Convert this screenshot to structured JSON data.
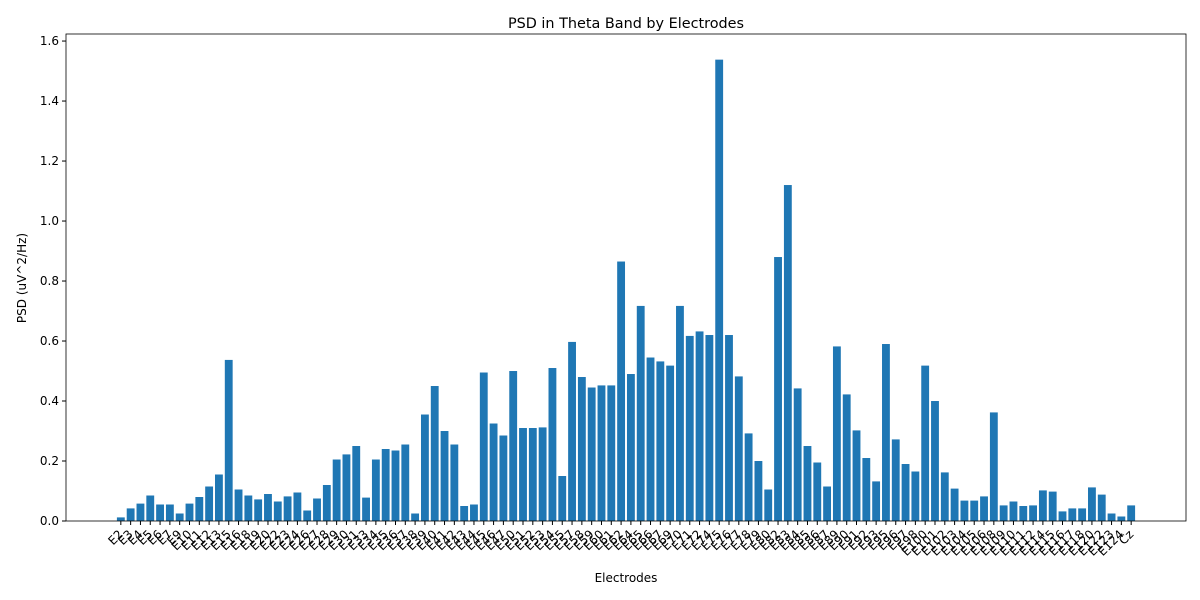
{
  "chart_data": {
    "type": "bar",
    "title": "PSD in Theta Band by Electrodes",
    "x_label": "Electrodes",
    "y_label": "PSD (uV^2/Hz)",
    "categories": [
      "E2",
      "E3",
      "E4",
      "E5",
      "E6",
      "E7",
      "E9",
      "E10",
      "E11",
      "E12",
      "E13",
      "E15",
      "E16",
      "E18",
      "E19",
      "E20",
      "E22",
      "E23",
      "E24",
      "E26",
      "E27",
      "E28",
      "E29",
      "E30",
      "E31",
      "E33",
      "E34",
      "E35",
      "E36",
      "E37",
      "E38",
      "E39",
      "E40",
      "E41",
      "E42",
      "E43",
      "E44",
      "E45",
      "E46",
      "E47",
      "E50",
      "E51",
      "E52",
      "E53",
      "E54",
      "E55",
      "E57",
      "E58",
      "E59",
      "E60",
      "E61",
      "E62",
      "E64",
      "E65",
      "E66",
      "E67",
      "E69",
      "E70",
      "E71",
      "E72",
      "E74",
      "E75",
      "E76",
      "E77",
      "E78",
      "E79",
      "E80",
      "E82",
      "E83",
      "E84",
      "E85",
      "E86",
      "E87",
      "E89",
      "E90",
      "E91",
      "E92",
      "E93",
      "E95",
      "E96",
      "E97",
      "E98",
      "E100",
      "E101",
      "E102",
      "E103",
      "E104",
      "E105",
      "E106",
      "E108",
      "E109",
      "E110",
      "E111",
      "E112",
      "E114",
      "E115",
      "E116",
      "E117",
      "E118",
      "E120",
      "E122",
      "E123",
      "E124",
      "Cz"
    ],
    "values": [
      0.012,
      0.042,
      0.058,
      0.085,
      0.055,
      0.055,
      0.025,
      0.058,
      0.08,
      0.115,
      0.155,
      0.537,
      0.105,
      0.085,
      0.072,
      0.09,
      0.065,
      0.082,
      0.095,
      0.035,
      0.075,
      0.12,
      0.205,
      0.222,
      0.25,
      0.078,
      0.205,
      0.24,
      0.235,
      0.255,
      0.025,
      0.355,
      0.45,
      0.3,
      0.255,
      0.05,
      0.055,
      0.495,
      0.325,
      0.285,
      0.5,
      0.31,
      0.31,
      0.312,
      0.51,
      0.15,
      0.597,
      0.48,
      0.445,
      0.452,
      0.452,
      0.865,
      0.49,
      0.717,
      0.545,
      0.532,
      0.518,
      0.717,
      0.617,
      0.632,
      0.62,
      1.538,
      0.62,
      0.482,
      0.292,
      0.2,
      0.105,
      0.88,
      1.12,
      0.442,
      0.25,
      0.195,
      0.115,
      0.582,
      0.422,
      0.302,
      0.21,
      0.132,
      0.59,
      0.272,
      0.19,
      0.165,
      0.518,
      0.4,
      0.162,
      0.108,
      0.068,
      0.068,
      0.082,
      0.362,
      0.052,
      0.065,
      0.05,
      0.052,
      0.102,
      0.098,
      0.032,
      0.042,
      0.042,
      0.112,
      0.088,
      0.025,
      0.015,
      0.052
    ],
    "color": "#1f77b4",
    "ylim": [
      0,
      1.6235
    ],
    "yticks": [
      {
        "value": 0,
        "label": "0.0"
      },
      0.2,
      0.4,
      0.6,
      0.8,
      {
        "value": 1,
        "label": "1.0"
      },
      1.2,
      1.4,
      1.6
    ]
  }
}
